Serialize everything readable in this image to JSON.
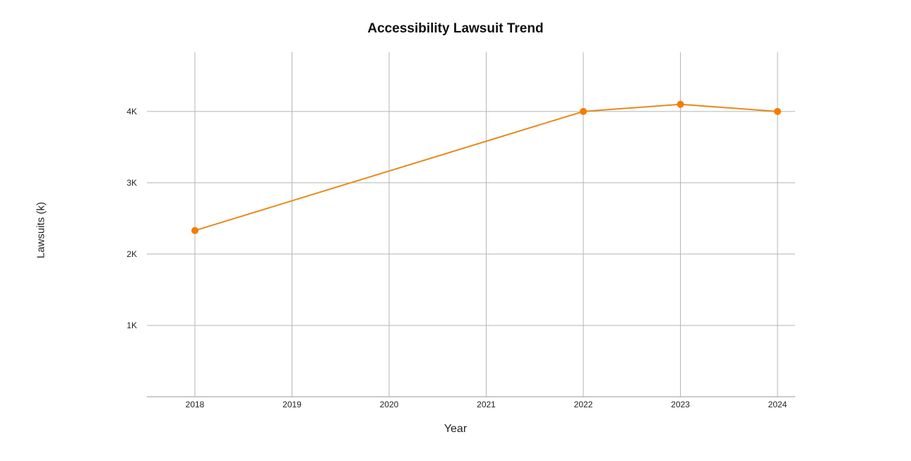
{
  "chart_data": {
    "type": "line",
    "title": "Accessibility Lawsuit Trend",
    "xlabel": "Year",
    "ylabel": "Lawsuits (k)",
    "categories": [
      "2018",
      "2019",
      "2020",
      "2021",
      "2022",
      "2023",
      "2024"
    ],
    "series": [
      {
        "x": [
          "2018",
          "2022",
          "2023",
          "2024"
        ],
        "values": [
          2330,
          4000,
          4100,
          4000
        ],
        "color": "#f07c0c"
      }
    ],
    "yticks": [
      {
        "value": 1000,
        "label": "1K"
      },
      {
        "value": 2000,
        "label": "2K"
      },
      {
        "value": 3000,
        "label": "3K"
      },
      {
        "value": 4000,
        "label": "4K"
      }
    ],
    "ylim": [
      0,
      4830
    ],
    "grid": true,
    "legend": "none",
    "colors": {
      "line": "#e8891c",
      "marker": "#f57c00",
      "grid": "#b5b5b5"
    }
  }
}
